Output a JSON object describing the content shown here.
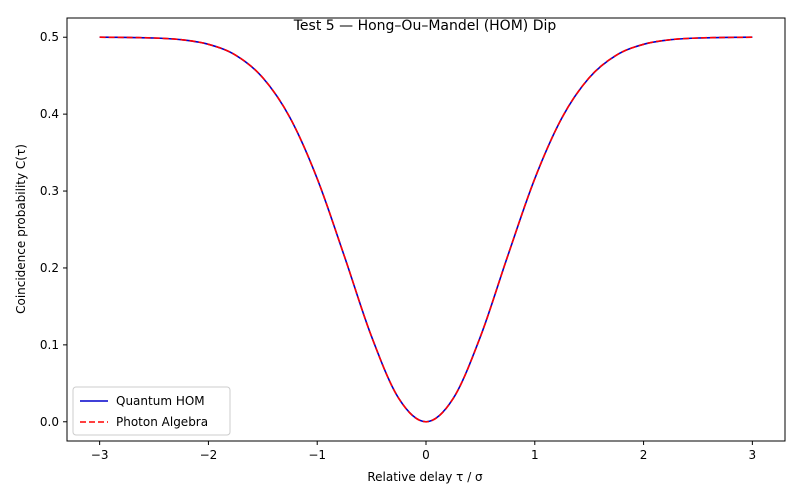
{
  "chart_data": {
    "type": "line",
    "title": "Test 5 — Hong–Ou–Mandel (HOM) Dip",
    "xlabel": "Relative delay τ / σ",
    "ylabel": "Coincidence probability C(τ)",
    "xlim": [
      -3.3,
      3.3
    ],
    "ylim": [
      -0.025,
      0.525
    ],
    "x_ticks": [
      -3,
      -2,
      -1,
      0,
      1,
      2,
      3
    ],
    "x_tick_labels": [
      "−3",
      "−2",
      "−1",
      "0",
      "1",
      "2",
      "3"
    ],
    "y_ticks": [
      0.0,
      0.1,
      0.2,
      0.3,
      0.4,
      0.5
    ],
    "y_tick_labels": [
      "0.0",
      "0.1",
      "0.2",
      "0.3",
      "0.4",
      "0.5"
    ],
    "grid": false,
    "legend_position": "lower-left",
    "x": [
      -3.0,
      -2.75,
      -2.5,
      -2.25,
      -2.0,
      -1.75,
      -1.5,
      -1.25,
      -1.0,
      -0.75,
      -0.5,
      -0.25,
      0.0,
      0.25,
      0.5,
      0.75,
      1.0,
      1.25,
      1.5,
      1.75,
      2.0,
      2.25,
      2.5,
      2.75,
      3.0
    ],
    "series": [
      {
        "name": "Quantum HOM",
        "color": "#0000cc",
        "dash": "solid",
        "values": [
          0.5,
          0.4997,
          0.499,
          0.4968,
          0.4908,
          0.4767,
          0.4473,
          0.3953,
          0.3161,
          0.2151,
          0.1106,
          0.0303,
          0.0,
          0.0303,
          0.1106,
          0.2151,
          0.3161,
          0.3953,
          0.4473,
          0.4767,
          0.4908,
          0.4968,
          0.499,
          0.4997,
          0.5
        ]
      },
      {
        "name": "Photon Algebra",
        "color": "#ff0000",
        "dash": "dashed",
        "values": [
          0.5,
          0.4997,
          0.499,
          0.4968,
          0.4908,
          0.4767,
          0.4473,
          0.3953,
          0.3161,
          0.2151,
          0.1106,
          0.0303,
          0.0,
          0.0303,
          0.1106,
          0.2151,
          0.3161,
          0.3953,
          0.4473,
          0.4767,
          0.4908,
          0.4968,
          0.499,
          0.4997,
          0.5
        ]
      }
    ]
  }
}
